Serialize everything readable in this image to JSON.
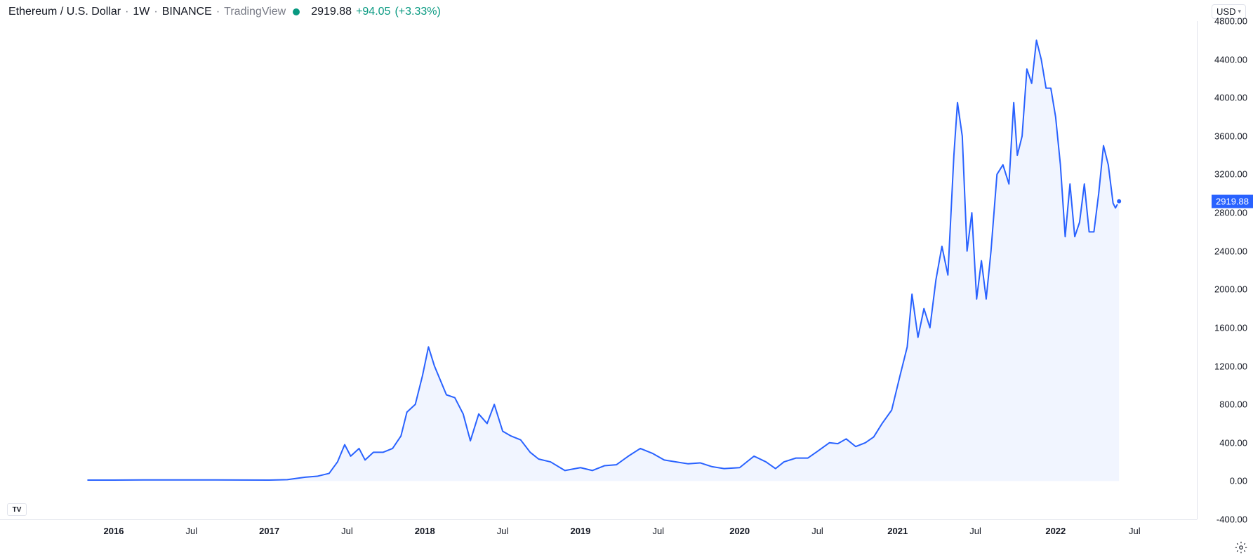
{
  "header": {
    "symbol": "Ethereum / U.S. Dollar",
    "timeframe": "1W",
    "exchange": "BINANCE",
    "source": "TradingView",
    "price": "2919.88",
    "change_abs": "+94.05",
    "change_pct": "(+3.33%)"
  },
  "currency_selector": "USD",
  "chart": {
    "type": "area",
    "line_color": "#2962ff",
    "fill_color": "#e8eeff",
    "fill_opacity": 0.6,
    "line_width": 2,
    "background_color": "#ffffff",
    "current_price": 2919.88,
    "price_tag_label": "2919.88",
    "price_tag_bg": "#2962ff",
    "price_tag_text": "#ffffff",
    "ylim": [
      -400,
      4800
    ],
    "y_ticks": [
      -400,
      0,
      400,
      800,
      1200,
      1600,
      2000,
      2400,
      2800,
      3200,
      3600,
      4000,
      4400,
      4800
    ],
    "y_labels": [
      "-400.00",
      "0.00",
      "400.00",
      "800.00",
      "1200.00",
      "1600.00",
      "2000.00",
      "2400.00",
      "2800.00",
      "3200.00",
      "3600.00",
      "4000.00",
      "4400.00",
      "4800.00"
    ],
    "x_ticks": [
      {
        "label": "2016",
        "pos": 0.095,
        "bold": true
      },
      {
        "label": "Jul",
        "pos": 0.16,
        "bold": false
      },
      {
        "label": "2017",
        "pos": 0.225,
        "bold": true
      },
      {
        "label": "Jul",
        "pos": 0.29,
        "bold": false
      },
      {
        "label": "2018",
        "pos": 0.355,
        "bold": true
      },
      {
        "label": "Jul",
        "pos": 0.42,
        "bold": false
      },
      {
        "label": "2019",
        "pos": 0.485,
        "bold": true
      },
      {
        "label": "Jul",
        "pos": 0.55,
        "bold": false
      },
      {
        "label": "2020",
        "pos": 0.618,
        "bold": true
      },
      {
        "label": "Jul",
        "pos": 0.683,
        "bold": false
      },
      {
        "label": "2021",
        "pos": 0.75,
        "bold": true
      },
      {
        "label": "Jul",
        "pos": 0.815,
        "bold": false
      },
      {
        "label": "2022",
        "pos": 0.882,
        "bold": true
      },
      {
        "label": "Jul",
        "pos": 0.948,
        "bold": false
      }
    ],
    "data": [
      {
        "x": 0.073,
        "y": 10
      },
      {
        "x": 0.095,
        "y": 10
      },
      {
        "x": 0.12,
        "y": 12
      },
      {
        "x": 0.14,
        "y": 12
      },
      {
        "x": 0.16,
        "y": 12
      },
      {
        "x": 0.18,
        "y": 12
      },
      {
        "x": 0.2,
        "y": 11
      },
      {
        "x": 0.225,
        "y": 10
      },
      {
        "x": 0.24,
        "y": 15
      },
      {
        "x": 0.255,
        "y": 40
      },
      {
        "x": 0.265,
        "y": 50
      },
      {
        "x": 0.275,
        "y": 80
      },
      {
        "x": 0.282,
        "y": 200
      },
      {
        "x": 0.288,
        "y": 380
      },
      {
        "x": 0.293,
        "y": 260
      },
      {
        "x": 0.3,
        "y": 340
      },
      {
        "x": 0.305,
        "y": 220
      },
      {
        "x": 0.312,
        "y": 300
      },
      {
        "x": 0.32,
        "y": 300
      },
      {
        "x": 0.328,
        "y": 340
      },
      {
        "x": 0.335,
        "y": 470
      },
      {
        "x": 0.34,
        "y": 720
      },
      {
        "x": 0.347,
        "y": 800
      },
      {
        "x": 0.353,
        "y": 1100
      },
      {
        "x": 0.358,
        "y": 1400
      },
      {
        "x": 0.363,
        "y": 1200
      },
      {
        "x": 0.368,
        "y": 1050
      },
      {
        "x": 0.373,
        "y": 900
      },
      {
        "x": 0.38,
        "y": 870
      },
      {
        "x": 0.387,
        "y": 700
      },
      {
        "x": 0.393,
        "y": 420
      },
      {
        "x": 0.4,
        "y": 700
      },
      {
        "x": 0.407,
        "y": 600
      },
      {
        "x": 0.413,
        "y": 800
      },
      {
        "x": 0.42,
        "y": 520
      },
      {
        "x": 0.427,
        "y": 470
      },
      {
        "x": 0.435,
        "y": 430
      },
      {
        "x": 0.443,
        "y": 300
      },
      {
        "x": 0.45,
        "y": 230
      },
      {
        "x": 0.46,
        "y": 200
      },
      {
        "x": 0.472,
        "y": 110
      },
      {
        "x": 0.485,
        "y": 140
      },
      {
        "x": 0.495,
        "y": 110
      },
      {
        "x": 0.505,
        "y": 160
      },
      {
        "x": 0.515,
        "y": 170
      },
      {
        "x": 0.525,
        "y": 260
      },
      {
        "x": 0.535,
        "y": 340
      },
      {
        "x": 0.545,
        "y": 290
      },
      {
        "x": 0.555,
        "y": 220
      },
      {
        "x": 0.565,
        "y": 200
      },
      {
        "x": 0.575,
        "y": 180
      },
      {
        "x": 0.585,
        "y": 190
      },
      {
        "x": 0.595,
        "y": 150
      },
      {
        "x": 0.605,
        "y": 130
      },
      {
        "x": 0.618,
        "y": 140
      },
      {
        "x": 0.63,
        "y": 260
      },
      {
        "x": 0.64,
        "y": 200
      },
      {
        "x": 0.648,
        "y": 130
      },
      {
        "x": 0.655,
        "y": 200
      },
      {
        "x": 0.665,
        "y": 240
      },
      {
        "x": 0.675,
        "y": 240
      },
      {
        "x": 0.683,
        "y": 310
      },
      {
        "x": 0.693,
        "y": 400
      },
      {
        "x": 0.7,
        "y": 390
      },
      {
        "x": 0.707,
        "y": 440
      },
      {
        "x": 0.715,
        "y": 360
      },
      {
        "x": 0.723,
        "y": 400
      },
      {
        "x": 0.73,
        "y": 460
      },
      {
        "x": 0.737,
        "y": 600
      },
      {
        "x": 0.745,
        "y": 740
      },
      {
        "x": 0.752,
        "y": 1100
      },
      {
        "x": 0.758,
        "y": 1400
      },
      {
        "x": 0.762,
        "y": 1950
      },
      {
        "x": 0.767,
        "y": 1500
      },
      {
        "x": 0.772,
        "y": 1800
      },
      {
        "x": 0.777,
        "y": 1600
      },
      {
        "x": 0.782,
        "y": 2100
      },
      {
        "x": 0.787,
        "y": 2450
      },
      {
        "x": 0.792,
        "y": 2150
      },
      {
        "x": 0.797,
        "y": 3400
      },
      {
        "x": 0.8,
        "y": 3950
      },
      {
        "x": 0.804,
        "y": 3600
      },
      {
        "x": 0.808,
        "y": 2400
      },
      {
        "x": 0.812,
        "y": 2800
      },
      {
        "x": 0.816,
        "y": 1900
      },
      {
        "x": 0.82,
        "y": 2300
      },
      {
        "x": 0.824,
        "y": 1900
      },
      {
        "x": 0.828,
        "y": 2400
      },
      {
        "x": 0.833,
        "y": 3200
      },
      {
        "x": 0.838,
        "y": 3300
      },
      {
        "x": 0.843,
        "y": 3100
      },
      {
        "x": 0.847,
        "y": 3950
      },
      {
        "x": 0.85,
        "y": 3400
      },
      {
        "x": 0.854,
        "y": 3600
      },
      {
        "x": 0.858,
        "y": 4300
      },
      {
        "x": 0.862,
        "y": 4150
      },
      {
        "x": 0.866,
        "y": 4600
      },
      {
        "x": 0.87,
        "y": 4400
      },
      {
        "x": 0.874,
        "y": 4100
      },
      {
        "x": 0.878,
        "y": 4100
      },
      {
        "x": 0.882,
        "y": 3800
      },
      {
        "x": 0.886,
        "y": 3300
      },
      {
        "x": 0.89,
        "y": 2550
      },
      {
        "x": 0.894,
        "y": 3100
      },
      {
        "x": 0.898,
        "y": 2550
      },
      {
        "x": 0.902,
        "y": 2700
      },
      {
        "x": 0.906,
        "y": 3100
      },
      {
        "x": 0.91,
        "y": 2600
      },
      {
        "x": 0.914,
        "y": 2600
      },
      {
        "x": 0.918,
        "y": 3000
      },
      {
        "x": 0.922,
        "y": 3500
      },
      {
        "x": 0.926,
        "y": 3300
      },
      {
        "x": 0.93,
        "y": 2900
      },
      {
        "x": 0.932,
        "y": 2850
      },
      {
        "x": 0.935,
        "y": 2920
      }
    ],
    "marker_color": "#2962ff",
    "marker_border": "#ffffff"
  },
  "colors": {
    "text_primary": "#131722",
    "text_secondary": "#787b86",
    "border": "#e0e3eb",
    "positive": "#089981",
    "accent": "#2962ff"
  },
  "axis_fontsize": 13,
  "header_fontsize": 16
}
